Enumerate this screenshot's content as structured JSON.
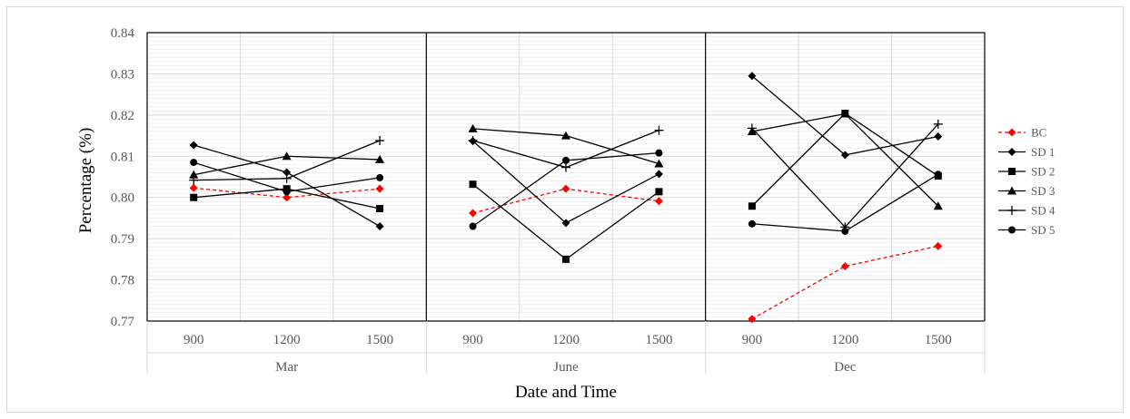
{
  "chart_data": {
    "type": "line",
    "xlabel": "Date and Time",
    "ylabel": "Percentage (%)",
    "ylim": [
      0.77,
      0.84
    ],
    "y_major_step": 0.01,
    "y_minor_step": 0.001,
    "y_tick_labels": [
      "0.77",
      "0.78",
      "0.79",
      "0.80",
      "0.81",
      "0.82",
      "0.83",
      "0.84"
    ],
    "grid": true,
    "legend_position": "right",
    "groups": [
      "Mar",
      "June",
      "Dec"
    ],
    "times": [
      "900",
      "1200",
      "1500"
    ],
    "series": [
      {
        "name": "BC",
        "color": "#ff0000",
        "marker": "diamond",
        "dashed": true,
        "values": [
          [
            0.8023,
            0.8,
            0.8021
          ],
          [
            0.7962,
            0.8021,
            0.7991
          ],
          [
            0.7705,
            0.7833,
            0.7882
          ]
        ]
      },
      {
        "name": "SD 1",
        "color": "#000000",
        "marker": "diamond",
        "dashed": false,
        "values": [
          [
            0.8127,
            0.8061,
            0.793
          ],
          [
            0.8137,
            0.7938,
            0.8057
          ],
          [
            0.8295,
            0.8103,
            0.8148
          ]
        ]
      },
      {
        "name": "SD 2",
        "color": "#000000",
        "marker": "square",
        "dashed": false,
        "values": [
          [
            0.8,
            0.8021,
            0.7973
          ],
          [
            0.8032,
            0.785,
            0.8014
          ],
          [
            0.7979,
            0.8204,
            0.8052
          ]
        ]
      },
      {
        "name": "SD 3",
        "color": "#000000",
        "marker": "triangle",
        "dashed": false,
        "values": [
          [
            0.8055,
            0.81,
            0.8092
          ],
          [
            0.8167,
            0.815,
            0.8082
          ],
          [
            0.816,
            0.8203,
            0.7979
          ]
        ]
      },
      {
        "name": "SD 4",
        "color": "#000000",
        "marker": "plus",
        "dashed": false,
        "values": [
          [
            0.8042,
            0.8046,
            0.8138
          ],
          [
            0.8138,
            0.8073,
            0.8163
          ],
          [
            0.8168,
            0.7928,
            0.8178
          ]
        ]
      },
      {
        "name": "SD 5",
        "color": "#000000",
        "marker": "circle",
        "dashed": false,
        "values": [
          [
            0.8085,
            0.8014,
            0.8048
          ],
          [
            0.793,
            0.809,
            0.8108
          ],
          [
            0.7936,
            0.7918,
            0.8056
          ]
        ]
      }
    ]
  }
}
